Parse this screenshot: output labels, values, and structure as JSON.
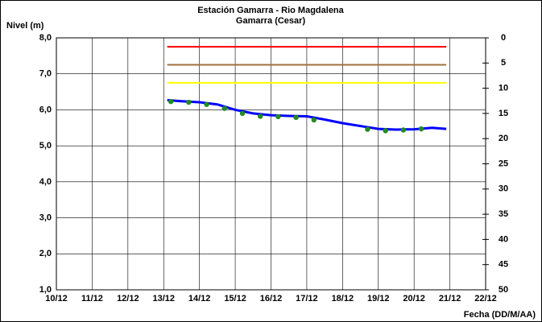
{
  "chart_data": {
    "type": "line",
    "title": "Estación Gamarra - Rio Magdalena",
    "subtitle": "Gamarra (Cesar)",
    "y_label": "Nivel (m)",
    "x_label": "Fecha (DD/M/AA)",
    "xlim": [
      10,
      22
    ],
    "xticks": [
      {
        "value": 10,
        "label": "10/12"
      },
      {
        "value": 11,
        "label": "11/12"
      },
      {
        "value": 12,
        "label": "12/12"
      },
      {
        "value": 13,
        "label": "13/12"
      },
      {
        "value": 14,
        "label": "14/12"
      },
      {
        "value": 15,
        "label": "15/12"
      },
      {
        "value": 16,
        "label": "16/12"
      },
      {
        "value": 17,
        "label": "17/12"
      },
      {
        "value": 18,
        "label": "18/12"
      },
      {
        "value": 19,
        "label": "19/12"
      },
      {
        "value": 20,
        "label": "20/12"
      },
      {
        "value": 21,
        "label": "21/12"
      },
      {
        "value": 22,
        "label": "22/12"
      }
    ],
    "ylim": [
      1,
      8
    ],
    "yticks": [
      {
        "value": 1,
        "label": "1,0"
      },
      {
        "value": 2,
        "label": "2,0"
      },
      {
        "value": 3,
        "label": "3,0"
      },
      {
        "value": 4,
        "label": "4,0"
      },
      {
        "value": 5,
        "label": "5,0"
      },
      {
        "value": 6,
        "label": "6,0"
      },
      {
        "value": 7,
        "label": "7,0"
      },
      {
        "value": 8,
        "label": "8,0"
      }
    ],
    "y2lim": [
      0,
      50
    ],
    "y2_inverted": true,
    "y2ticks": [
      0,
      5,
      10,
      15,
      20,
      25,
      30,
      35,
      40,
      45,
      50
    ],
    "grid": true,
    "series": [
      {
        "color": "#ff0000",
        "x": [
          13.1,
          20.9
        ],
        "values": [
          7.75,
          7.75
        ]
      },
      {
        "color": "#a0703c",
        "x": [
          13.1,
          20.9
        ],
        "values": [
          7.25,
          7.25
        ]
      },
      {
        "color": "#ffff00",
        "x": [
          13.1,
          20.9
        ],
        "values": [
          6.75,
          6.75
        ]
      },
      {
        "color": "#0000ff",
        "x": [
          13.1,
          13.5,
          14,
          14.5,
          15,
          15.5,
          16,
          16.5,
          17,
          17.5,
          18,
          18.5,
          19,
          19.5,
          20,
          20.5,
          20.9
        ],
        "values": [
          6.27,
          6.24,
          6.21,
          6.15,
          6.0,
          5.9,
          5.85,
          5.83,
          5.82,
          5.73,
          5.63,
          5.55,
          5.47,
          5.45,
          5.46,
          5.5,
          5.47
        ]
      },
      {
        "color": "#228b22",
        "markers": true,
        "x": [
          13.2,
          13.7,
          14.2,
          14.7,
          15.2,
          15.7,
          16.2,
          16.7,
          17.2,
          18.7,
          19.2,
          19.7,
          20.2
        ],
        "values": [
          6.23,
          6.21,
          6.15,
          6.04,
          5.9,
          5.82,
          5.81,
          5.79,
          5.72,
          5.46,
          5.42,
          5.44,
          5.47
        ]
      }
    ]
  }
}
